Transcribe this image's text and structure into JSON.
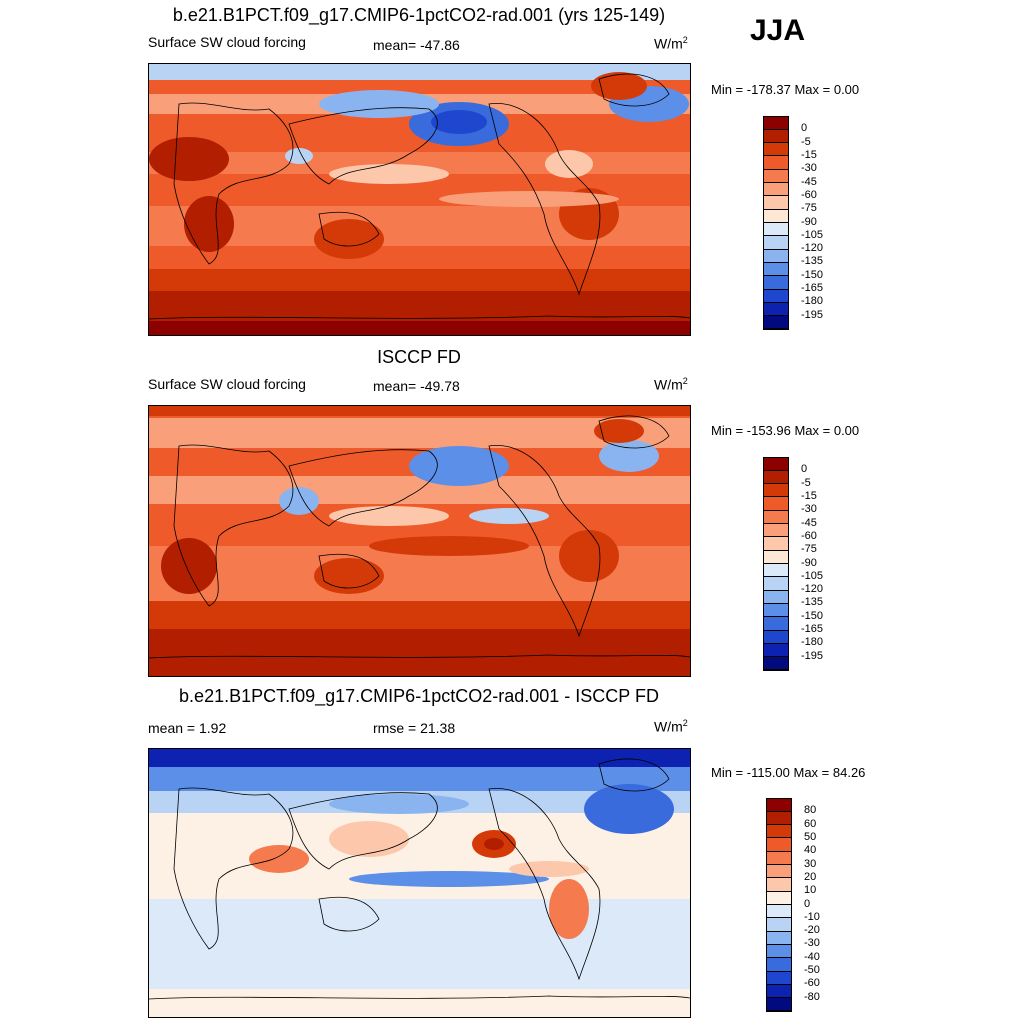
{
  "season": "JJA",
  "panels": [
    {
      "title": "b.e21.B1PCT.f09_g17.CMIP6-1pctCO2-rad.001 (yrs 125-149)",
      "left_text": "Surface SW cloud forcing",
      "mid_text": "mean= -47.86",
      "units_base": "W/m",
      "units_sup": "2",
      "minmax": "Min = -178.37 Max =   0.00",
      "colors": [
        "#8c0000",
        "#b21e00",
        "#d43a08",
        "#ef5a2a",
        "#f57a4e",
        "#f9a07a",
        "#fcc7aa",
        "#fde8d6",
        "#dce9f8",
        "#b9d3f5",
        "#8ab4ef",
        "#5b8fe8",
        "#3a6bdd",
        "#1f46cf",
        "#0d22b0",
        "#020a80"
      ],
      "labels": [
        "0",
        "-5",
        "-15",
        "-30",
        "-45",
        "-60",
        "-75",
        "-90",
        "-105",
        "-120",
        "-135",
        "-150",
        "-165",
        "-180",
        "-195"
      ]
    },
    {
      "title": "ISCCP FD",
      "left_text": "Surface SW cloud forcing",
      "mid_text": "mean= -49.78",
      "units_base": "W/m",
      "units_sup": "2",
      "minmax": "Min = -153.96 Max =   0.00",
      "colors": [
        "#8c0000",
        "#b21e00",
        "#d43a08",
        "#ef5a2a",
        "#f57a4e",
        "#f9a07a",
        "#fcc7aa",
        "#fde8d6",
        "#dce9f8",
        "#b9d3f5",
        "#8ab4ef",
        "#5b8fe8",
        "#3a6bdd",
        "#1f46cf",
        "#0d22b0",
        "#020a80"
      ],
      "labels": [
        "0",
        "-5",
        "-15",
        "-30",
        "-45",
        "-60",
        "-75",
        "-90",
        "-105",
        "-120",
        "-135",
        "-150",
        "-165",
        "-180",
        "-195"
      ]
    },
    {
      "title": "b.e21.B1PCT.f09_g17.CMIP6-1pctCO2-rad.001 - ISCCP FD",
      "left_text": "mean =   1.92",
      "mid_text": "rmse =  21.38",
      "units_base": "W/m",
      "units_sup": "2",
      "minmax": "Min = -115.00 Max =  84.26",
      "colors": [
        "#8c0000",
        "#b21e00",
        "#d43a08",
        "#ef5a2a",
        "#f57a4e",
        "#f9a07a",
        "#fcc7aa",
        "#fdf1e6",
        "#dce9f8",
        "#b9d3f5",
        "#8ab4ef",
        "#5b8fe8",
        "#3a6bdd",
        "#1f46cf",
        "#0d22b0",
        "#020a80"
      ],
      "labels": [
        "80",
        "60",
        "50",
        "40",
        "30",
        "20",
        "10",
        "0",
        "-10",
        "-20",
        "-30",
        "-40",
        "-50",
        "-60",
        "-80"
      ]
    }
  ]
}
